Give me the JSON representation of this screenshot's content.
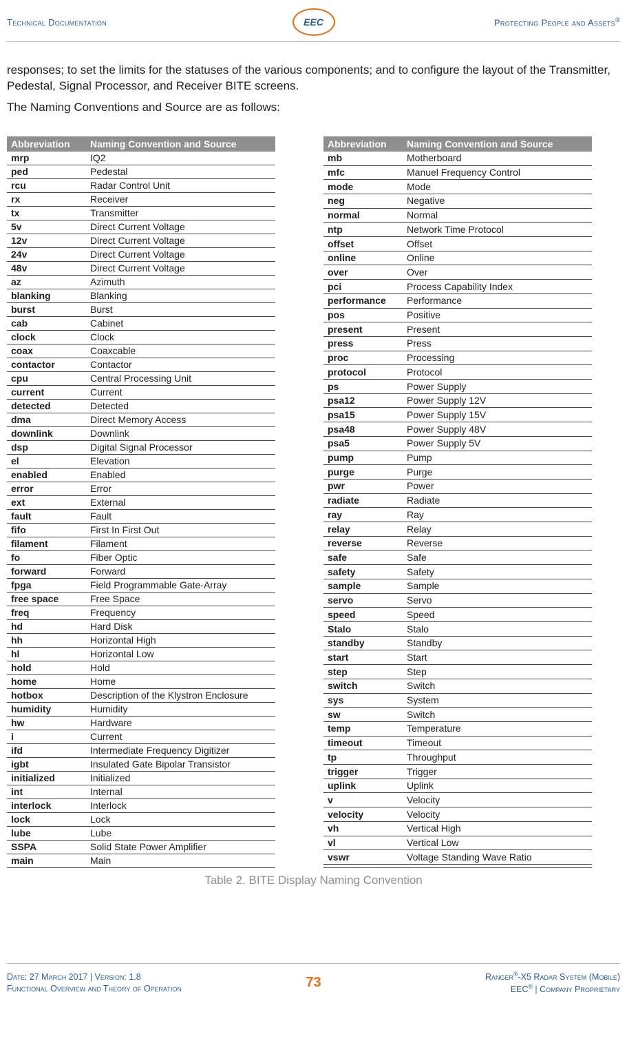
{
  "header": {
    "left": "Technical Documentation",
    "logo": "EEC",
    "right_prefix": "Protecting People and Assets",
    "right_suffix": "®"
  },
  "intro": {
    "p1": "responses; to set the limits for the statuses of the various components; and to configure the layout of the Transmitter, Pedestal, Signal Processor, and Receiver BITE screens.",
    "p2": "The Naming Conventions and Source are as follows:"
  },
  "table_headers": {
    "col1": "Abbreviation",
    "col2": "Naming Convention and Source"
  },
  "table_left": [
    {
      "a": "mrp",
      "b": "IQ2"
    },
    {
      "a": "ped",
      "b": "Pedestal"
    },
    {
      "a": "rcu",
      "b": "Radar Control Unit"
    },
    {
      "a": "rx",
      "b": "Receiver"
    },
    {
      "a": "tx",
      "b": "Transmitter"
    },
    {
      "a": "5v",
      "b": "Direct Current Voltage"
    },
    {
      "a": "12v",
      "b": "Direct Current Voltage"
    },
    {
      "a": "24v",
      "b": "Direct Current Voltage"
    },
    {
      "a": "48v",
      "b": "Direct Current Voltage"
    },
    {
      "a": "az",
      "b": "Azimuth"
    },
    {
      "a": "blanking",
      "b": "Blanking"
    },
    {
      "a": "burst",
      "b": "Burst"
    },
    {
      "a": "cab",
      "b": "Cabinet"
    },
    {
      "a": "clock",
      "b": "Clock"
    },
    {
      "a": "coax",
      "b": "Coaxcable"
    },
    {
      "a": "contactor",
      "b": "Contactor"
    },
    {
      "a": "cpu",
      "b": "Central Processing Unit"
    },
    {
      "a": "current",
      "b": "Current"
    },
    {
      "a": "detected",
      "b": "Detected"
    },
    {
      "a": "dma",
      "b": "Direct Memory Access"
    },
    {
      "a": "downlink",
      "b": "Downlink"
    },
    {
      "a": "dsp",
      "b": "Digital Signal Processor"
    },
    {
      "a": "el",
      "b": "Elevation"
    },
    {
      "a": "enabled",
      "b": "Enabled"
    },
    {
      "a": "error",
      "b": "Error"
    },
    {
      "a": "ext",
      "b": "External"
    },
    {
      "a": "fault",
      "b": "Fault"
    },
    {
      "a": "fifo",
      "b": "First In First Out"
    },
    {
      "a": "filament",
      "b": "Filament"
    },
    {
      "a": "fo",
      "b": "Fiber Optic"
    },
    {
      "a": "forward",
      "b": "Forward"
    },
    {
      "a": "fpga",
      "b": "Field Programmable Gate-Array"
    },
    {
      "a": "free space",
      "b": "Free Space"
    },
    {
      "a": "freq",
      "b": "Frequency"
    },
    {
      "a": "hd",
      "b": "Hard Disk"
    },
    {
      "a": "hh",
      "b": "Horizontal High"
    },
    {
      "a": "hl",
      "b": "Horizontal Low"
    },
    {
      "a": "hold",
      "b": "Hold"
    },
    {
      "a": "home",
      "b": "Home"
    },
    {
      "a": "hotbox",
      "b": "Description of the Klystron Enclosure"
    },
    {
      "a": "humidity",
      "b": "Humidity"
    },
    {
      "a": "hw",
      "b": "Hardware"
    },
    {
      "a": "i",
      "b": "Current"
    },
    {
      "a": "ifd",
      "b": "Intermediate Frequency Digitizer"
    },
    {
      "a": "igbt",
      "b": "Insulated Gate Bipolar Transistor"
    },
    {
      "a": "initialized",
      "b": "Initialized"
    },
    {
      "a": "int",
      "b": "Internal"
    },
    {
      "a": "interlock",
      "b": "Interlock"
    },
    {
      "a": "lock",
      "b": "Lock"
    },
    {
      "a": "lube",
      "b": "Lube"
    },
    {
      "a": "SSPA",
      "b": "Solid State Power Amplifier"
    },
    {
      "a": "main",
      "b": "Main"
    }
  ],
  "table_right": [
    {
      "a": "mb",
      "b": "Motherboard"
    },
    {
      "a": "mfc",
      "b": "Manuel Frequency Control"
    },
    {
      "a": "mode",
      "b": "Mode"
    },
    {
      "a": "neg",
      "b": "Negative"
    },
    {
      "a": "normal",
      "b": "Normal"
    },
    {
      "a": "ntp",
      "b": "Network Time Protocol"
    },
    {
      "a": "offset",
      "b": "Offset"
    },
    {
      "a": "online",
      "b": "Online"
    },
    {
      "a": "over",
      "b": "Over"
    },
    {
      "a": "pci",
      "b": "Process Capability Index"
    },
    {
      "a": "performance",
      "b": "Performance"
    },
    {
      "a": "pos",
      "b": "Positive"
    },
    {
      "a": "present",
      "b": "Present"
    },
    {
      "a": "press",
      "b": "Press"
    },
    {
      "a": "proc",
      "b": "Processing"
    },
    {
      "a": "protocol",
      "b": "Protocol"
    },
    {
      "a": "ps",
      "b": "Power Supply"
    },
    {
      "a": "psa12",
      "b": "Power Supply 12V"
    },
    {
      "a": "psa15",
      "b": "Power Supply 15V"
    },
    {
      "a": "psa48",
      "b": "Power Supply 48V"
    },
    {
      "a": "psa5",
      "b": "Power Supply 5V"
    },
    {
      "a": "pump",
      "b": "Pump"
    },
    {
      "a": "purge",
      "b": "Purge"
    },
    {
      "a": "pwr",
      "b": "Power"
    },
    {
      "a": "radiate",
      "b": "Radiate"
    },
    {
      "a": "ray",
      "b": "Ray"
    },
    {
      "a": "relay",
      "b": "Relay"
    },
    {
      "a": "reverse",
      "b": "Reverse"
    },
    {
      "a": "safe",
      "b": "Safe"
    },
    {
      "a": "safety",
      "b": "Safety"
    },
    {
      "a": "sample",
      "b": "Sample"
    },
    {
      "a": "servo",
      "b": "Servo"
    },
    {
      "a": "speed",
      "b": "Speed"
    },
    {
      "a": "Stalo",
      "b": "Stalo"
    },
    {
      "a": "standby",
      "b": "Standby"
    },
    {
      "a": "start",
      "b": "Start"
    },
    {
      "a": "step",
      "b": "Step"
    },
    {
      "a": "switch",
      "b": "Switch"
    },
    {
      "a": "sys",
      "b": "System"
    },
    {
      "a": "sw",
      "b": "Switch"
    },
    {
      "a": "temp",
      "b": "Temperature"
    },
    {
      "a": "timeout",
      "b": "Timeout"
    },
    {
      "a": "tp",
      "b": "Throughput"
    },
    {
      "a": "trigger",
      "b": "Trigger"
    },
    {
      "a": "uplink",
      "b": "Uplink"
    },
    {
      "a": "v",
      "b": "Velocity"
    },
    {
      "a": "velocity",
      "b": "Velocity"
    },
    {
      "a": "vh",
      "b": "Vertical High"
    },
    {
      "a": "vl",
      "b": "Vertical Low"
    },
    {
      "a": "vswr",
      "b": "Voltage Standing Wave Ratio"
    },
    {
      "a": "",
      "b": ""
    }
  ],
  "caption": "Table 2. BITE Display Naming Convention",
  "footer": {
    "left1": "Date: 27 March 2017 | Version: 1.8",
    "left2": "Functional Overview and Theory of Operation",
    "page": "73",
    "right1_prefix": "Ranger",
    "right1_mid": "-X5 Radar System (Mobile)",
    "right2_prefix": "EEC",
    "right2_suffix": " | Company Proprietary"
  },
  "colors": {
    "header_text": "#2a5d8f",
    "accent": "#e0701a",
    "table_header_bg": "#8f8f8f",
    "caption": "#8f8f8f"
  }
}
